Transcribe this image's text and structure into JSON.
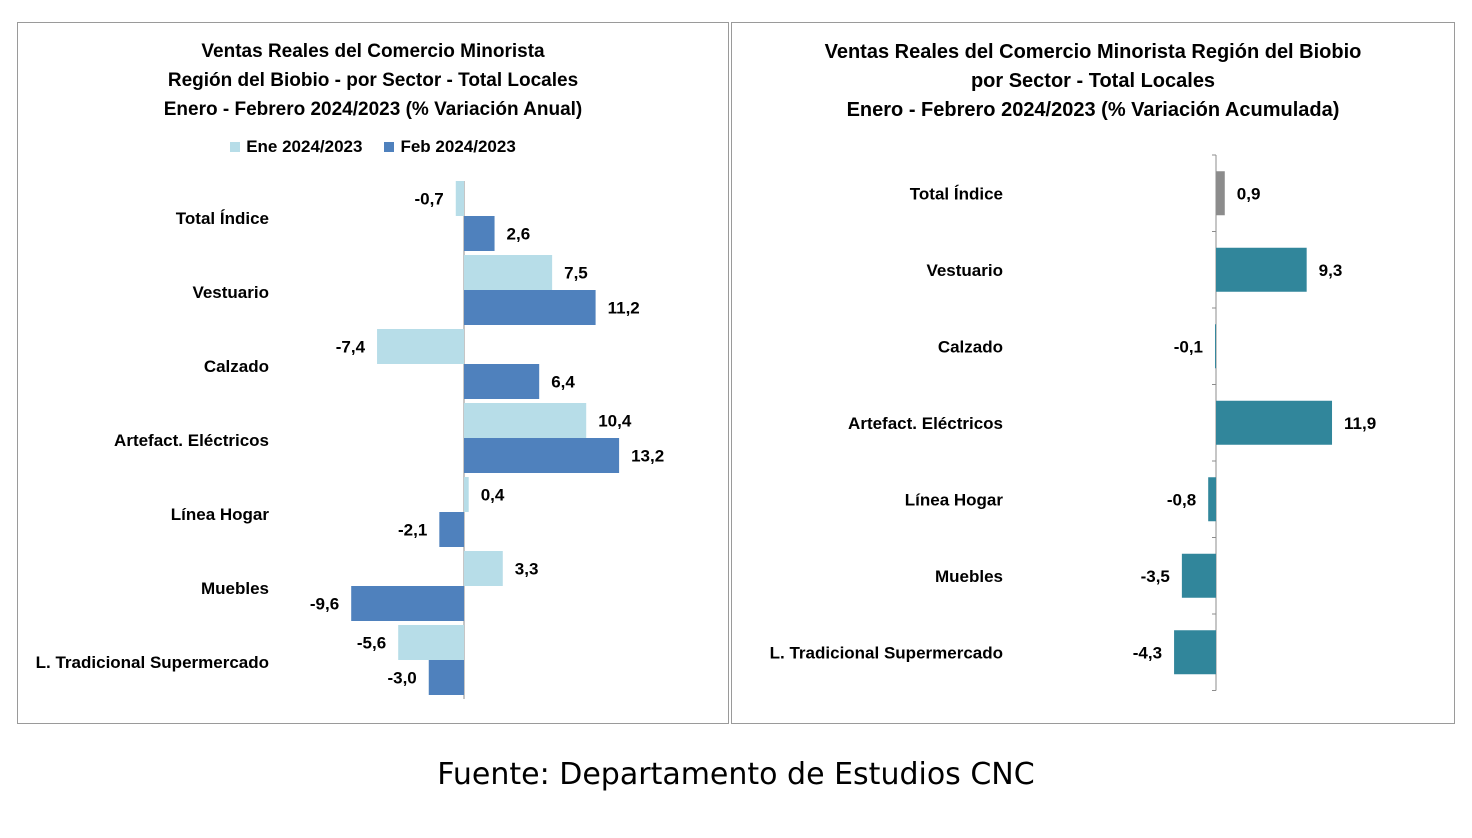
{
  "chart_data": [
    {
      "type": "bar",
      "orientation": "horizontal",
      "title_lines": [
        "Ventas Reales del Comercio Minorista",
        "Región del Biobio - por Sector - Total Locales",
        "Enero - Febrero 2024/2023 (% Variación Anual)"
      ],
      "categories": [
        "Total Índice",
        "Vestuario",
        "Calzado",
        "Artefact. Eléctricos",
        "Línea Hogar",
        "Muebles",
        "L. Tradicional Supermercado"
      ],
      "series": [
        {
          "name": "Ene 2024/2023",
          "color": "#b7dde8",
          "values": [
            -0.7,
            7.5,
            -7.4,
            10.4,
            0.4,
            3.3,
            -5.6
          ],
          "labels": [
            "-0,7",
            "7,5",
            "-7,4",
            "10,4",
            "0,4",
            "3,3",
            "-5,6"
          ]
        },
        {
          "name": "Feb 2024/2023",
          "color": "#4f81bd",
          "values": [
            2.6,
            11.2,
            6.4,
            13.2,
            -2.1,
            -9.6,
            -3.0
          ],
          "labels": [
            "2,6",
            "11,2",
            "6,4",
            "13,2",
            "-2,1",
            "-9,6",
            "-3,0"
          ]
        }
      ],
      "legend_position": "top",
      "grid": false
    },
    {
      "type": "bar",
      "orientation": "horizontal",
      "title_lines": [
        "Ventas Reales del Comercio Minorista Región del Biobio",
        "por Sector - Total Locales",
        "Enero - Febrero 2024/2023  (% Variación Acumulada)"
      ],
      "categories": [
        "Total Índice",
        "Vestuario",
        "Calzado",
        "Artefact. Eléctricos",
        "Línea Hogar",
        "Muebles",
        "L. Tradicional Supermercado"
      ],
      "values": [
        0.9,
        9.3,
        -0.1,
        11.9,
        -0.8,
        -3.5,
        -4.3
      ],
      "labels": [
        "0,9",
        "9,3",
        "-0,1",
        "11,9",
        "-0,8",
        "-3,5",
        "-4,3"
      ],
      "colors": [
        "#8c8c8c",
        "#31869b",
        "#31869b",
        "#31869b",
        "#31869b",
        "#31869b",
        "#31869b"
      ],
      "grid": false
    }
  ],
  "source": "Fuente: Departamento de Estudios CNC"
}
